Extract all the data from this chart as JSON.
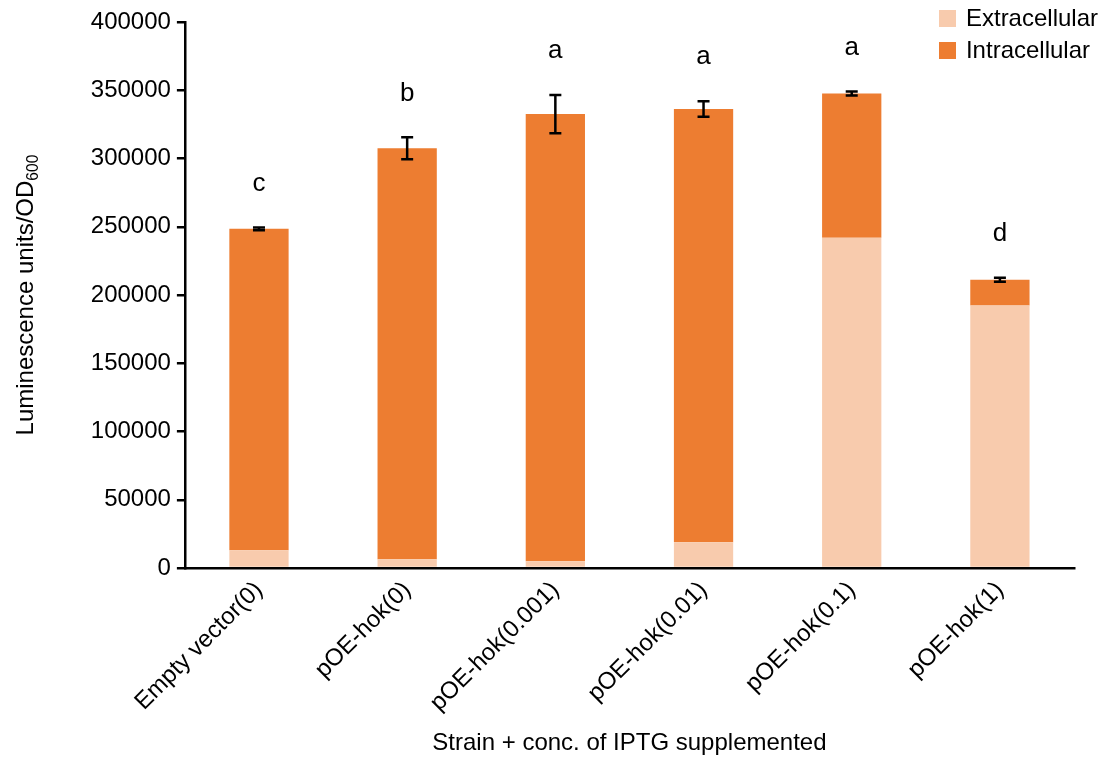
{
  "chart_data": {
    "type": "bar",
    "stacked": true,
    "xlabel": "Strain + conc. of IPTG supplemented",
    "ylabel": "Luminescence units/OD$_{600}$",
    "categories": [
      "Empty vector(0)",
      "pOE-hok(0)",
      "pOE-hok(0.001)",
      "pOE-hok(0.01)",
      "pOE-hok(0.1)",
      "pOE-hok(1)"
    ],
    "series": [
      {
        "name": "Extracellular",
        "color": "#f8cbad",
        "values": [
          13000,
          6500,
          5100,
          19000,
          242000,
          192400
        ]
      },
      {
        "name": "Intracellular",
        "color": "#ed7d31",
        "values": [
          235500,
          301000,
          327500,
          317300,
          105600,
          18800
        ],
        "errors": [
          1000,
          8000,
          14000,
          5700,
          1500,
          1500
        ]
      }
    ],
    "ylim": [
      0,
      400000
    ],
    "yticks": [
      0,
      50000,
      100000,
      150000,
      200000,
      250000,
      300000,
      350000,
      400000
    ],
    "grid": false,
    "legend": "top right",
    "annotations": [
      "c",
      "b",
      "a",
      "a",
      "a",
      "d"
    ]
  }
}
